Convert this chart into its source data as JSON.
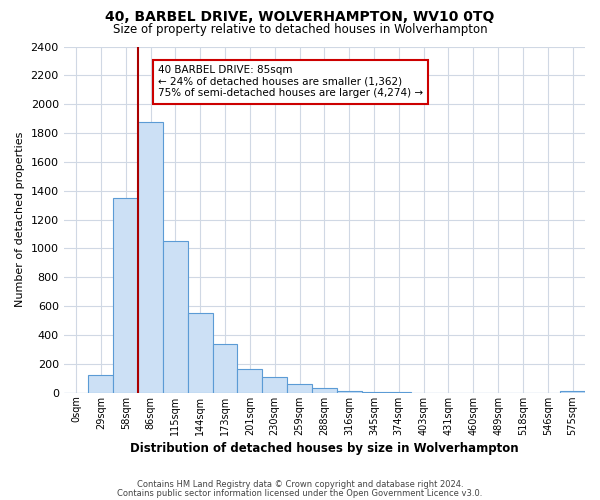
{
  "title": "40, BARBEL DRIVE, WOLVERHAMPTON, WV10 0TQ",
  "subtitle": "Size of property relative to detached houses in Wolverhampton",
  "xlabel": "Distribution of detached houses by size in Wolverhampton",
  "ylabel": "Number of detached properties",
  "bar_labels": [
    "0sqm",
    "29sqm",
    "58sqm",
    "86sqm",
    "115sqm",
    "144sqm",
    "173sqm",
    "201sqm",
    "230sqm",
    "259sqm",
    "288sqm",
    "316sqm",
    "345sqm",
    "374sqm",
    "403sqm",
    "431sqm",
    "460sqm",
    "489sqm",
    "518sqm",
    "546sqm",
    "575sqm"
  ],
  "bar_values": [
    0,
    125,
    1350,
    1880,
    1050,
    550,
    335,
    165,
    110,
    60,
    30,
    15,
    5,
    2,
    1,
    0,
    1,
    0,
    0,
    0,
    10
  ],
  "bar_color": "#cce0f5",
  "bar_edge_color": "#5b9bd5",
  "vline_position": 2.5,
  "vline_color": "#aa0000",
  "ylim": [
    0,
    2400
  ],
  "yticks": [
    0,
    200,
    400,
    600,
    800,
    1000,
    1200,
    1400,
    1600,
    1800,
    2000,
    2200,
    2400
  ],
  "annotation_title": "40 BARBEL DRIVE: 85sqm",
  "annotation_line1": "← 24% of detached houses are smaller (1,362)",
  "annotation_line2": "75% of semi-detached houses are larger (4,274) →",
  "annotation_box_color": "#ffffff",
  "annotation_box_edge": "#cc0000",
  "footer1": "Contains HM Land Registry data © Crown copyright and database right 2024.",
  "footer2": "Contains public sector information licensed under the Open Government Licence v3.0.",
  "bg_color": "#ffffff",
  "grid_color": "#d0d8e4"
}
